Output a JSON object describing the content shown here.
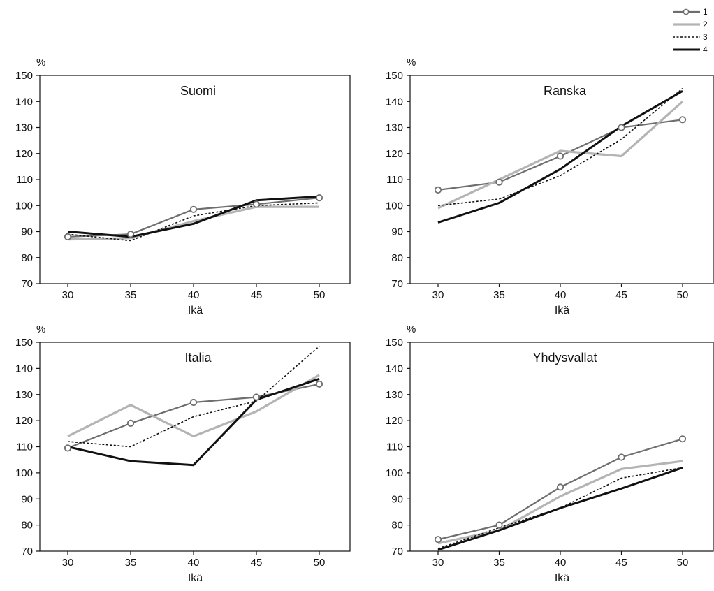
{
  "legend": {
    "items": [
      {
        "label": "1",
        "color": "#6e6e6e",
        "style": "solid-marker"
      },
      {
        "label": "2",
        "color": "#b4b4b4",
        "style": "solid-thick"
      },
      {
        "label": "3",
        "color": "#111111",
        "style": "dotted"
      },
      {
        "label": "4",
        "color": "#111111",
        "style": "solid-bold"
      }
    ]
  },
  "chart_data": [
    {
      "type": "line",
      "title": "Suomi",
      "xlabel": "Ikä",
      "ylabel": "%",
      "x": [
        30,
        35,
        40,
        45,
        50
      ],
      "xticks": [
        30,
        35,
        40,
        45,
        50
      ],
      "ylim": [
        70,
        150
      ],
      "yticks": [
        70,
        80,
        90,
        100,
        110,
        120,
        130,
        140,
        150
      ],
      "grid": false,
      "series": [
        {
          "name": "1",
          "values": [
            88,
            89,
            98.5,
            100.5,
            103
          ]
        },
        {
          "name": "2",
          "values": [
            87,
            87.5,
            94,
            99.5,
            99.5
          ]
        },
        {
          "name": "3",
          "values": [
            89,
            86.5,
            96,
            100,
            101
          ]
        },
        {
          "name": "4",
          "values": [
            90,
            88,
            93,
            102,
            103.5
          ]
        }
      ]
    },
    {
      "type": "line",
      "title": "Ranska",
      "xlabel": "Ikä",
      "ylabel": "%",
      "x": [
        30,
        35,
        40,
        45,
        50
      ],
      "xticks": [
        30,
        35,
        40,
        45,
        50
      ],
      "ylim": [
        70,
        150
      ],
      "yticks": [
        70,
        80,
        90,
        100,
        110,
        120,
        130,
        140,
        150
      ],
      "grid": false,
      "series": [
        {
          "name": "1",
          "values": [
            106,
            109,
            119,
            130,
            133
          ]
        },
        {
          "name": "2",
          "values": [
            99,
            110,
            121,
            119,
            140
          ]
        },
        {
          "name": "3",
          "values": [
            100,
            102.5,
            111.5,
            125.5,
            145
          ]
        },
        {
          "name": "4",
          "values": [
            93.5,
            101,
            114,
            130.5,
            144
          ]
        }
      ]
    },
    {
      "type": "line",
      "title": "Italia",
      "xlabel": "Ikä",
      "ylabel": "%",
      "x": [
        30,
        35,
        40,
        45,
        50
      ],
      "xticks": [
        30,
        35,
        40,
        45,
        50
      ],
      "ylim": [
        70,
        150
      ],
      "yticks": [
        70,
        80,
        90,
        100,
        110,
        120,
        130,
        140,
        150
      ],
      "grid": false,
      "series": [
        {
          "name": "1",
          "values": [
            109.5,
            119,
            127,
            129,
            134
          ]
        },
        {
          "name": "2",
          "values": [
            114,
            126,
            114,
            123.5,
            137.5
          ]
        },
        {
          "name": "3",
          "values": [
            112,
            110,
            121.5,
            127.5,
            148.5
          ]
        },
        {
          "name": "4",
          "values": [
            110,
            104.5,
            103,
            128,
            136
          ]
        }
      ]
    },
    {
      "type": "line",
      "title": "Yhdysvallat",
      "xlabel": "Ikä",
      "ylabel": "%",
      "x": [
        30,
        35,
        40,
        45,
        50
      ],
      "xticks": [
        30,
        35,
        40,
        45,
        50
      ],
      "ylim": [
        70,
        150
      ],
      "yticks": [
        70,
        80,
        90,
        100,
        110,
        120,
        130,
        140,
        150
      ],
      "grid": false,
      "series": [
        {
          "name": "1",
          "values": [
            74.5,
            80,
            94.5,
            106,
            113
          ]
        },
        {
          "name": "2",
          "values": [
            73,
            78,
            91,
            101.5,
            104.5
          ]
        },
        {
          "name": "3",
          "values": [
            71,
            79,
            86.5,
            98,
            102
          ]
        },
        {
          "name": "4",
          "values": [
            70.5,
            78,
            86.5,
            94,
            102
          ]
        }
      ]
    }
  ]
}
